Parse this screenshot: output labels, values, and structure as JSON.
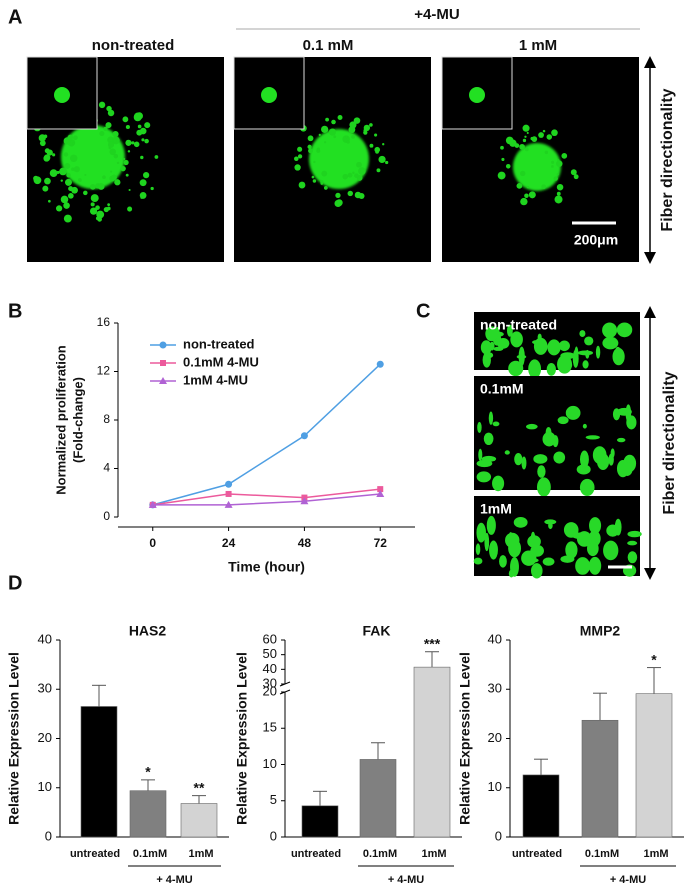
{
  "panel_labels": [
    "A",
    "B",
    "C",
    "D"
  ],
  "panel_a": {
    "group_label": "+4-MU",
    "images": [
      "non-treated",
      "0.1 mM",
      "1 mM"
    ],
    "scale_bar": "200μm",
    "side_label": "Fiber directionality"
  },
  "panel_c": {
    "images": [
      "non-treated",
      "0.1mM",
      "1mM"
    ],
    "side_label": "Fiber directionality"
  },
  "chart_data": [
    {
      "type": "line",
      "x_label": "Time (hour)",
      "y_label": [
        "Normalized proliferation",
        "(Fold-change)"
      ],
      "x": [
        0,
        24,
        48,
        72
      ],
      "xlim": [
        -11,
        83
      ],
      "xticks": [
        0,
        24,
        48,
        72
      ],
      "ylim": [
        0,
        16
      ],
      "yticks": [
        0,
        4,
        8,
        12,
        16
      ],
      "series": [
        {
          "name": "non-treated",
          "color": "#4f9fe3",
          "marker": "circle",
          "values": [
            1,
            2.7,
            6.7,
            12.6
          ]
        },
        {
          "name": "0.1mM 4-MU",
          "color": "#ec5a9c",
          "marker": "square",
          "values": [
            1,
            1.9,
            1.6,
            2.3
          ]
        },
        {
          "name": "1mM 4-MU",
          "color": "#b062d4",
          "marker": "triangle",
          "values": [
            1,
            1,
            1.3,
            1.9
          ]
        }
      ]
    },
    {
      "type": "bar",
      "title": "HAS2",
      "y_label": "Relative Expression Level",
      "group_label": "+ 4-MU",
      "categories": [
        "untreated",
        "0.1mM",
        "1mM"
      ],
      "values": [
        26.5,
        9.4,
        6.8
      ],
      "errors": [
        4.3,
        2.2,
        1.6
      ],
      "significance": [
        null,
        "*",
        "**"
      ],
      "colors": [
        "#000000",
        "#808080",
        "#d3d3d3"
      ],
      "ylim": [
        0,
        40
      ],
      "yticks": [
        0,
        10,
        20,
        30,
        40
      ]
    },
    {
      "type": "bar",
      "title": "FAK",
      "y_label": "Relative Expression Level",
      "group_label": "+ 4-MU",
      "categories": [
        "untreated",
        "0.1mM",
        "1mM"
      ],
      "values": [
        4.3,
        10.7,
        41.5
      ],
      "errors": [
        2,
        2.3,
        10.5
      ],
      "significance": [
        null,
        null,
        "***"
      ],
      "colors": [
        "#000000",
        "#808080",
        "#d3d3d3"
      ],
      "ylim": [
        0,
        60
      ],
      "ybreak": [
        20,
        30
      ],
      "yticks": [
        0,
        5,
        10,
        15,
        20,
        30,
        40,
        50,
        60
      ]
    },
    {
      "type": "bar",
      "title": "MMP2",
      "y_label": "Relative Expression Level",
      "group_label": "+ 4-MU",
      "categories": [
        "untreated",
        "0.1mM",
        "1mM"
      ],
      "values": [
        12.6,
        23.7,
        29.1
      ],
      "errors": [
        3.2,
        5.5,
        5.3
      ],
      "significance": [
        null,
        null,
        "*"
      ],
      "colors": [
        "#000000",
        "#808080",
        "#d3d3d3"
      ],
      "ylim": [
        0,
        40
      ],
      "yticks": [
        0,
        10,
        20,
        30,
        40
      ]
    }
  ]
}
